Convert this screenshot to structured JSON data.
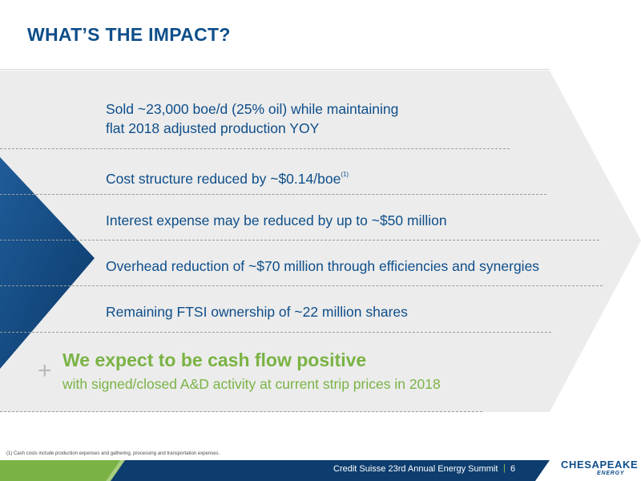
{
  "slide": {
    "title": "WHAT’S THE IMPACT?"
  },
  "bullets": [
    {
      "line1": "Sold ~23,000 boe/d (25% oil) while maintaining",
      "line2": "flat 2018 adjusted production YOY"
    },
    {
      "text": "Cost structure reduced by ~$0.14/boe",
      "sup": "(1)"
    },
    {
      "text": "Interest expense may be reduced by up to ~$50 million"
    },
    {
      "text": "Overhead reduction of ~$70 million through efficiencies and synergies"
    },
    {
      "text": "Remaining FTSI ownership of ~22 million shares"
    }
  ],
  "cashflow": {
    "plus": "+",
    "headline": "We expect to be cash flow positive",
    "subline": "with signed/closed A&D activity at current strip prices in 2018"
  },
  "footnote": "(1)   Cash costs include production expenses and gathering, processing and transportation expenses.",
  "footer": {
    "event": "Credit Suisse 23rd Annual Energy Summit",
    "divider": "|",
    "page": "6"
  },
  "logo": {
    "main": "CHESAPEAKE",
    "sub": "ENERGY"
  },
  "colors": {
    "title_blue": "#0e4e8a",
    "text_blue": "#0e4e8a",
    "green": "#7ab344",
    "footer_navy": "#0d3d6e",
    "chevron_gray": "#ececec"
  }
}
